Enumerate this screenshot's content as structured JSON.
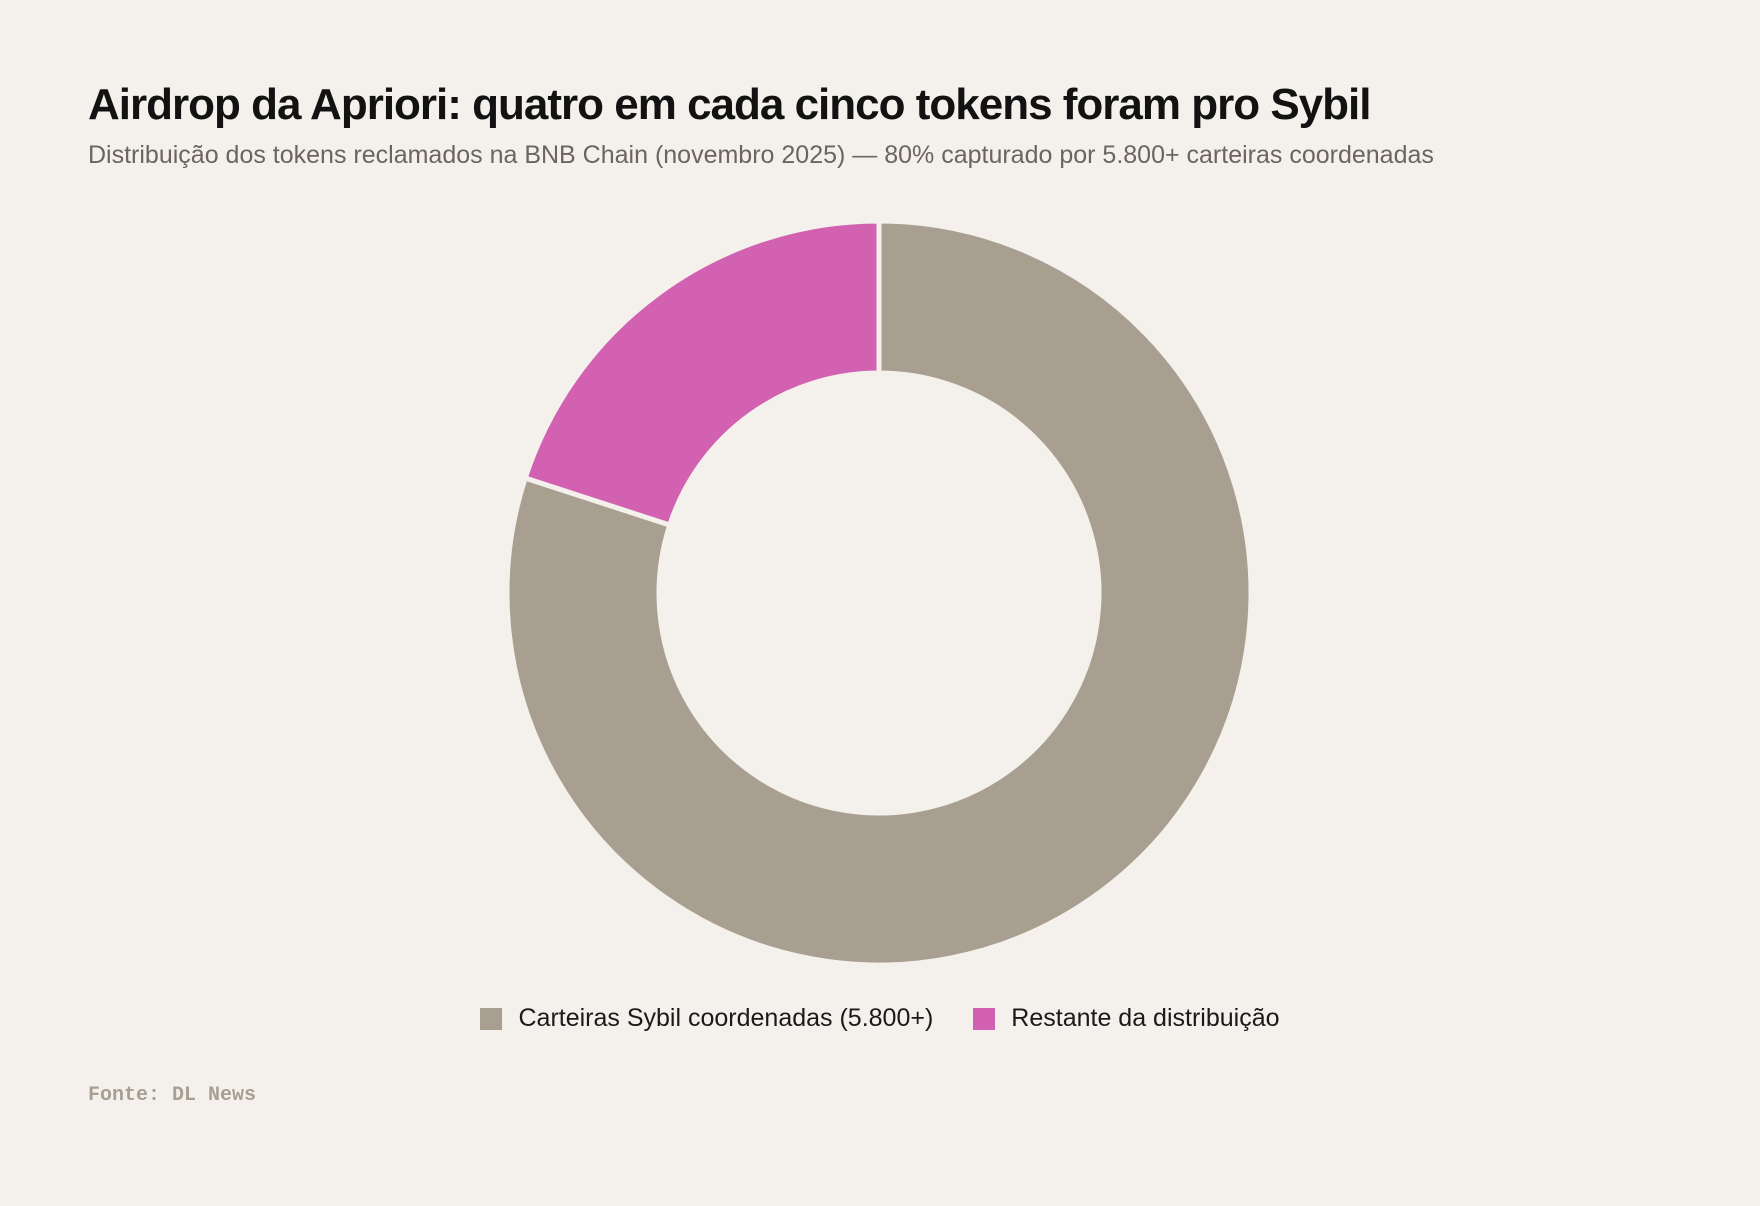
{
  "chart_data": {
    "type": "pie",
    "variant": "donut",
    "title": "Airdrop da Apriori: quatro em cada cinco tokens foram pro Sybil",
    "subtitle": "Distribuição dos tokens reclamados na BNB Chain (novembro 2025) — 80% capturado por 5.800+ carteiras coordenadas",
    "series": [
      {
        "name": "Carteiras Sybil coordenadas (5.800+)",
        "value": 80,
        "color": "#a89f90"
      },
      {
        "name": "Restante da distribuição",
        "value": 20,
        "color": "#d262b1"
      }
    ],
    "legend_position": "bottom-center",
    "source": "Fonte: DL News"
  },
  "colors": {
    "background": "#f4f1ec",
    "separator": "#f4f1ec"
  }
}
